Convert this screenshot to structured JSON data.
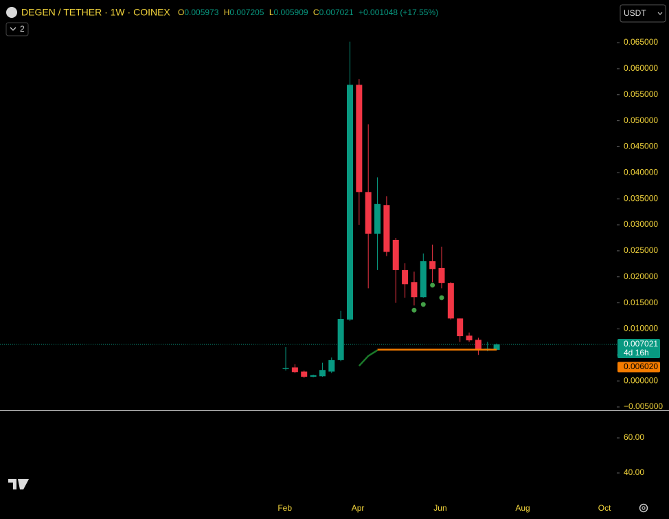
{
  "symbol": "DEGEN / TETHER · 1W · COINEX",
  "ohlc_labels": [
    "O",
    "H",
    "L",
    "C"
  ],
  "change": "+0.001048 (+17.55%)",
  "currency": "USDT",
  "indicator_count": 2,
  "countdown": "4d 16h",
  "chart_data": [
    {
      "type": "candlestick",
      "categories": [
        null,
        null,
        null,
        null,
        null,
        null,
        null,
        null,
        null,
        null,
        null,
        null,
        null,
        null,
        null,
        null,
        null,
        null,
        null,
        null,
        null,
        null,
        null,
        null
      ],
      "open": [
        0.0023,
        0.0026,
        0.0018,
        0.0008,
        0.0009,
        0.0018,
        0.004,
        0.0118,
        0.0569,
        0.0363,
        0.0283,
        0.0338,
        0.0271,
        0.0213,
        0.019,
        0.0161,
        0.023,
        0.0217,
        0.0188,
        0.012,
        0.0087,
        0.0079,
        0.006,
        0.005973
      ],
      "high": [
        0.0065,
        0.0032,
        0.002,
        0.0012,
        0.0035,
        0.0045,
        0.0135,
        0.0652,
        0.058,
        0.0493,
        0.0391,
        0.0355,
        0.0275,
        0.0226,
        0.021,
        0.0245,
        0.0262,
        0.0258,
        0.019,
        0.012,
        0.0093,
        0.0083,
        0.0075,
        0.007205
      ],
      "low": [
        0.002,
        0.0015,
        0.0006,
        0.0007,
        0.0008,
        0.0015,
        0.0038,
        0.0115,
        0.03,
        0.0178,
        0.0213,
        0.024,
        0.015,
        0.016,
        0.0145,
        0.016,
        0.019,
        0.0178,
        0.0118,
        0.0075,
        0.0075,
        0.005,
        0.0057,
        0.005909
      ],
      "close": [
        0.0025,
        0.0017,
        0.0008,
        0.0011,
        0.0021,
        0.004,
        0.0119,
        0.0569,
        0.0363,
        0.0283,
        0.034,
        0.0248,
        0.0213,
        0.0186,
        0.0161,
        0.023,
        0.0215,
        0.0188,
        0.012,
        0.0086,
        0.0078,
        0.006,
        0.0062,
        0.007021
      ],
      "up_color": "#089981",
      "down_color": "#f23645",
      "series": [
        {
          "color": "#1b7a2a",
          "values": [
            null,
            null,
            null,
            null,
            null,
            null,
            null,
            null,
            0.0029,
            0.0048,
            0.0059,
            null,
            null,
            null,
            null,
            null,
            null,
            null,
            null,
            null,
            null,
            null,
            null,
            null
          ]
        },
        {
          "color": "#f57c00",
          "values": [
            null,
            null,
            null,
            null,
            null,
            null,
            null,
            null,
            null,
            null,
            0.00602,
            0.00602,
            0.00602,
            0.00602,
            0.00602,
            0.00602,
            0.00602,
            0.00602,
            0.00602,
            0.00602,
            0.00602,
            0.00602,
            0.00602,
            0.00602
          ]
        },
        {
          "color": "#43a047",
          "marker": "dot",
          "values": [
            null,
            null,
            null,
            null,
            null,
            null,
            null,
            null,
            null,
            null,
            null,
            null,
            null,
            null,
            0.0136,
            0.0147,
            0.0184,
            0.016,
            null,
            null,
            null,
            null,
            null,
            null
          ]
        }
      ],
      "price_labels": [
        {
          "value": 0.00602,
          "label": "0.006020",
          "color": "#f57c00"
        }
      ],
      "xlim": [
        -31.16,
        36.1
      ],
      "xticks": [
        {
          "value": -0.1,
          "label": "Feb"
        },
        {
          "value": 7.87,
          "label": "Apr"
        },
        {
          "value": 16.85,
          "label": "Jun"
        },
        {
          "value": 25.84,
          "label": "Aug"
        },
        {
          "value": 34.76,
          "label": "Oct"
        }
      ],
      "ylim": [
        -0.005,
        0.0732
      ],
      "yticks": [
        {
          "value": -0.005,
          "label": "−0.005000"
        },
        {
          "value": 0,
          "label": "0.000000"
        },
        {
          "value": 0.005,
          "label": "0.005000"
        },
        {
          "value": 0.01,
          "label": "0.010000"
        },
        {
          "value": 0.015,
          "label": "0.015000"
        },
        {
          "value": 0.02,
          "label": "0.020000"
        },
        {
          "value": 0.025,
          "label": "0.025000"
        },
        {
          "value": 0.03,
          "label": "0.030000"
        },
        {
          "value": 0.035,
          "label": "0.035000"
        },
        {
          "value": 0.04,
          "label": "0.040000"
        },
        {
          "value": 0.045,
          "label": "0.045000"
        },
        {
          "value": 0.05,
          "label": "0.050000"
        },
        {
          "value": 0.055,
          "label": "0.055000"
        },
        {
          "value": 0.06,
          "label": "0.060000"
        },
        {
          "value": 0.065,
          "label": "0.065000"
        }
      ]
    },
    {
      "type": "line",
      "ylim": [
        25.5,
        75.3
      ],
      "yticks": [
        {
          "value": 60,
          "label": "60.00"
        },
        {
          "value": 40,
          "label": "40.00"
        }
      ]
    }
  ]
}
